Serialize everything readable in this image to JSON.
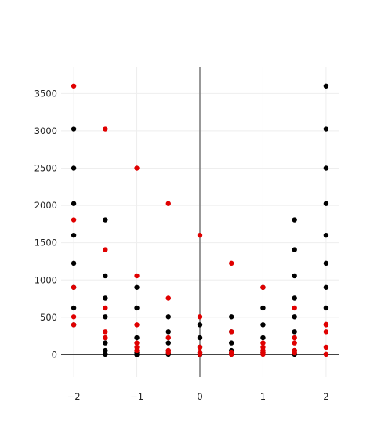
{
  "chart_data": {
    "type": "scatter",
    "title": "",
    "xlabel": "",
    "ylabel": "",
    "xlim": [
      -2.2,
      2.2
    ],
    "ylim": [
      -300,
      3850
    ],
    "grid": true,
    "legend": "none",
    "x_ticks": [
      -2,
      -1,
      0,
      1,
      2
    ],
    "x_tick_labels": [
      "−2",
      "−1",
      "0",
      "1",
      "2"
    ],
    "y_ticks": [
      0,
      500,
      1000,
      1500,
      2000,
      2500,
      3000,
      3500
    ],
    "y_tick_labels": [
      "0",
      "500",
      "1000",
      "1500",
      "2000",
      "2500",
      "3000",
      "3500"
    ],
    "series": [
      {
        "color": "#000000",
        "points": [
          {
            "x": -2,
            "y": 3025
          },
          {
            "x": -2,
            "y": 2500
          },
          {
            "x": -2,
            "y": 2025
          },
          {
            "x": -2,
            "y": 1600
          },
          {
            "x": -2,
            "y": 1225
          },
          {
            "x": -2,
            "y": 900
          },
          {
            "x": -2,
            "y": 625
          },
          {
            "x": -2,
            "y": 400
          },
          {
            "x": -1.5,
            "y": 1806
          },
          {
            "x": -1.5,
            "y": 1056
          },
          {
            "x": -1.5,
            "y": 756
          },
          {
            "x": -1.5,
            "y": 506
          },
          {
            "x": -1.5,
            "y": 156
          },
          {
            "x": -1.5,
            "y": 56
          },
          {
            "x": -1.5,
            "y": 6
          },
          {
            "x": -1,
            "y": 900
          },
          {
            "x": -1,
            "y": 625
          },
          {
            "x": -1,
            "y": 225
          },
          {
            "x": -1,
            "y": 25
          },
          {
            "x": -1,
            "y": 0
          },
          {
            "x": -0.5,
            "y": 506
          },
          {
            "x": -0.5,
            "y": 306
          },
          {
            "x": -0.5,
            "y": 156
          },
          {
            "x": -0.5,
            "y": 56
          },
          {
            "x": -0.5,
            "y": 6
          },
          {
            "x": 0,
            "y": 400
          },
          {
            "x": 0,
            "y": 225
          },
          {
            "x": 0,
            "y": 100
          },
          {
            "x": 0,
            "y": 25
          },
          {
            "x": 0,
            "y": 0
          },
          {
            "x": 0.5,
            "y": 506
          },
          {
            "x": 0.5,
            "y": 306
          },
          {
            "x": 0.5,
            "y": 156
          },
          {
            "x": 0.5,
            "y": 56
          },
          {
            "x": 0.5,
            "y": 6
          },
          {
            "x": 1,
            "y": 900
          },
          {
            "x": 1,
            "y": 625
          },
          {
            "x": 1,
            "y": 400
          },
          {
            "x": 1,
            "y": 225
          },
          {
            "x": 1,
            "y": 25
          },
          {
            "x": 1.5,
            "y": 1806
          },
          {
            "x": 1.5,
            "y": 1406
          },
          {
            "x": 1.5,
            "y": 1056
          },
          {
            "x": 1.5,
            "y": 756
          },
          {
            "x": 1.5,
            "y": 506
          },
          {
            "x": 1.5,
            "y": 306
          },
          {
            "x": 1.5,
            "y": 56
          },
          {
            "x": 1.5,
            "y": 6
          },
          {
            "x": 2,
            "y": 3600
          },
          {
            "x": 2,
            "y": 3025
          },
          {
            "x": 2,
            "y": 2500
          },
          {
            "x": 2,
            "y": 2025
          },
          {
            "x": 2,
            "y": 1600
          },
          {
            "x": 2,
            "y": 1225
          },
          {
            "x": 2,
            "y": 900
          },
          {
            "x": 2,
            "y": 625
          }
        ]
      },
      {
        "color": "#e00000",
        "points": [
          {
            "x": -2,
            "y": 3600
          },
          {
            "x": -2,
            "y": 1806
          },
          {
            "x": -2,
            "y": 900
          },
          {
            "x": -2,
            "y": 506
          },
          {
            "x": -2,
            "y": 400
          },
          {
            "x": -1.5,
            "y": 3025
          },
          {
            "x": -1.5,
            "y": 1406
          },
          {
            "x": -1.5,
            "y": 625
          },
          {
            "x": -1.5,
            "y": 306
          },
          {
            "x": -1.5,
            "y": 225
          },
          {
            "x": -1,
            "y": 2500
          },
          {
            "x": -1,
            "y": 1056
          },
          {
            "x": -1,
            "y": 400
          },
          {
            "x": -1,
            "y": 156
          },
          {
            "x": -1,
            "y": 100
          },
          {
            "x": -1,
            "y": 56
          },
          {
            "x": -0.5,
            "y": 2025
          },
          {
            "x": -0.5,
            "y": 756
          },
          {
            "x": -0.5,
            "y": 225
          },
          {
            "x": -0.5,
            "y": 56
          },
          {
            "x": -0.5,
            "y": 25
          },
          {
            "x": 0,
            "y": 1600
          },
          {
            "x": 0,
            "y": 506
          },
          {
            "x": 0,
            "y": 100
          },
          {
            "x": 0,
            "y": 25
          },
          {
            "x": 0,
            "y": 6
          },
          {
            "x": 0.5,
            "y": 1225
          },
          {
            "x": 0.5,
            "y": 306
          },
          {
            "x": 0.5,
            "y": 25
          },
          {
            "x": 0.5,
            "y": 6
          },
          {
            "x": 1,
            "y": 900
          },
          {
            "x": 1,
            "y": 156
          },
          {
            "x": 1,
            "y": 100
          },
          {
            "x": 1,
            "y": 56
          },
          {
            "x": 1,
            "y": 25
          },
          {
            "x": 1,
            "y": 6
          },
          {
            "x": 1.5,
            "y": 625
          },
          {
            "x": 1.5,
            "y": 225
          },
          {
            "x": 1.5,
            "y": 156
          },
          {
            "x": 1.5,
            "y": 56
          },
          {
            "x": 1.5,
            "y": 25
          },
          {
            "x": 2,
            "y": 406
          },
          {
            "x": 2,
            "y": 400
          },
          {
            "x": 2,
            "y": 306
          },
          {
            "x": 2,
            "y": 100
          },
          {
            "x": 2,
            "y": 6
          }
        ]
      }
    ]
  }
}
